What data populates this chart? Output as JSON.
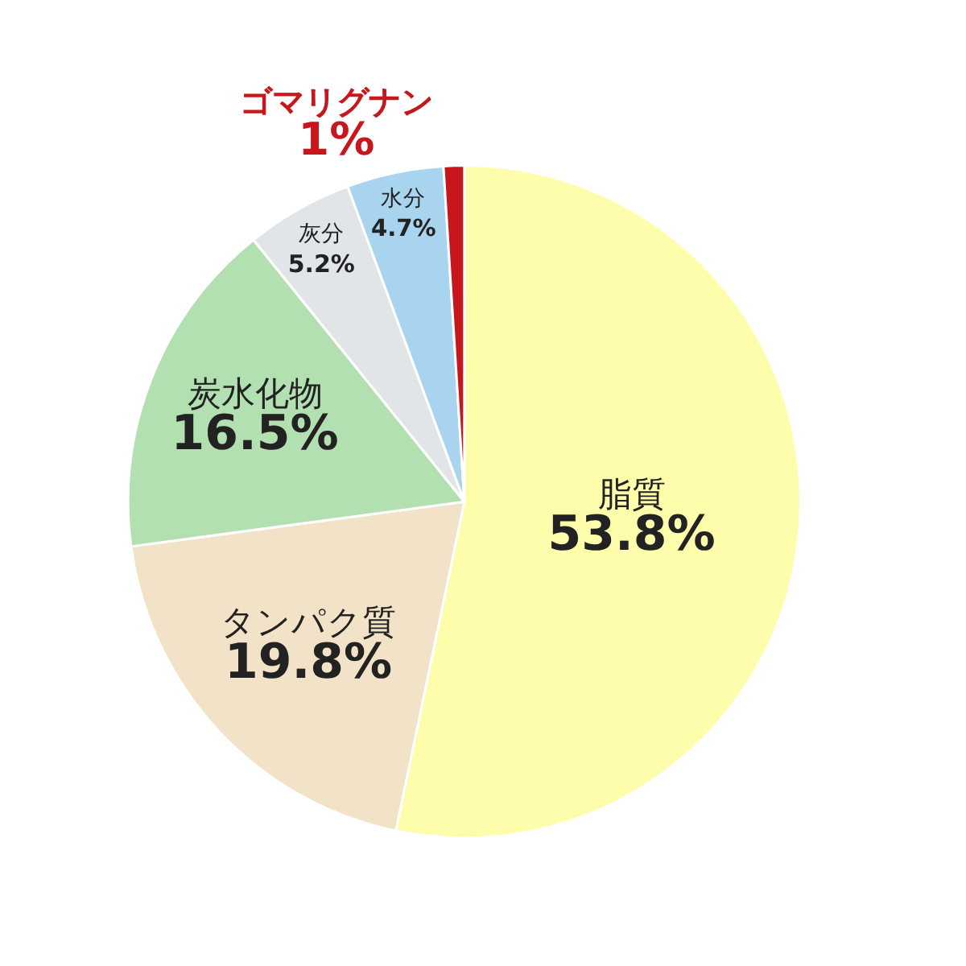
{
  "chart_data": {
    "type": "pie",
    "categories": [
      "脂質",
      "タンパク質",
      "炭水化物",
      "灰分",
      "水分",
      "ゴマリグナン"
    ],
    "values": [
      53.8,
      19.8,
      16.5,
      5.2,
      4.7,
      1
    ],
    "value_labels": [
      "53.8%",
      "19.8%",
      "16.5%",
      "5.2%",
      "4.7%",
      "1%"
    ],
    "colors": [
      "#fdfdab",
      "#f2e2c8",
      "#b2e0b0",
      "#e2e5e7",
      "#a9d4ef",
      "#c8161d"
    ],
    "legend": false
  }
}
